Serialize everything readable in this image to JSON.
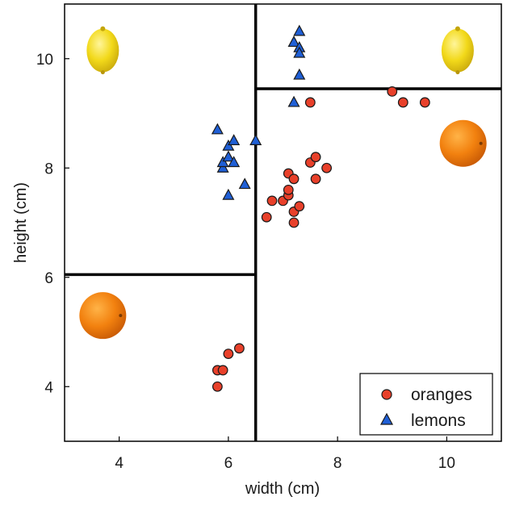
{
  "chart_data": {
    "type": "scatter",
    "xlabel": "width (cm)",
    "ylabel": "height (cm)",
    "xlim": [
      3.0,
      11.0
    ],
    "ylim": [
      3.0,
      11.0
    ],
    "xticks": [
      4,
      6,
      8,
      10
    ],
    "yticks": [
      4,
      6,
      8,
      10
    ],
    "grid": false,
    "legend_position": "bottom-right",
    "series": [
      {
        "name": "oranges",
        "marker": "circle",
        "color": "#e8402a",
        "points": [
          [
            5.8,
            4.0
          ],
          [
            5.8,
            4.3
          ],
          [
            5.9,
            4.3
          ],
          [
            6.0,
            4.6
          ],
          [
            6.2,
            4.7
          ],
          [
            6.7,
            7.1
          ],
          [
            6.8,
            7.4
          ],
          [
            7.0,
            7.4
          ],
          [
            7.1,
            7.5
          ],
          [
            7.1,
            7.6
          ],
          [
            7.1,
            7.9
          ],
          [
            7.2,
            7.0
          ],
          [
            7.2,
            7.2
          ],
          [
            7.2,
            7.8
          ],
          [
            7.3,
            7.3
          ],
          [
            7.5,
            8.1
          ],
          [
            7.6,
            8.2
          ],
          [
            7.6,
            7.8
          ],
          [
            7.8,
            8.0
          ],
          [
            7.5,
            9.2
          ],
          [
            9.0,
            9.4
          ],
          [
            9.2,
            9.2
          ],
          [
            9.6,
            9.2
          ]
        ]
      },
      {
        "name": "lemons",
        "marker": "triangle",
        "color": "#1f5fd6",
        "points": [
          [
            5.8,
            8.7
          ],
          [
            5.9,
            8.0
          ],
          [
            5.9,
            8.1
          ],
          [
            6.0,
            8.2
          ],
          [
            6.0,
            8.4
          ],
          [
            6.0,
            7.5
          ],
          [
            6.1,
            8.5
          ],
          [
            6.1,
            8.1
          ],
          [
            6.3,
            7.7
          ],
          [
            6.5,
            8.5
          ],
          [
            7.2,
            10.3
          ],
          [
            7.2,
            9.2
          ],
          [
            7.3,
            10.5
          ],
          [
            7.3,
            10.2
          ],
          [
            7.3,
            10.1
          ],
          [
            7.3,
            9.7
          ]
        ]
      }
    ],
    "decision_boundaries": [
      {
        "orientation": "vertical",
        "x": 6.5,
        "y_from": 3.0,
        "y_to": 11.0
      },
      {
        "orientation": "horizontal",
        "y": 6.05,
        "x_from": 3.0,
        "x_to": 6.5
      },
      {
        "orientation": "horizontal",
        "y": 9.45,
        "x_from": 6.5,
        "x_to": 11.0
      }
    ],
    "region_icons": [
      {
        "fruit": "lemon",
        "x": 3.7,
        "y": 10.15
      },
      {
        "fruit": "lemon",
        "x": 10.2,
        "y": 10.15
      },
      {
        "fruit": "orange",
        "x": 10.3,
        "y": 8.45
      },
      {
        "fruit": "orange",
        "x": 3.7,
        "y": 5.3
      }
    ]
  }
}
